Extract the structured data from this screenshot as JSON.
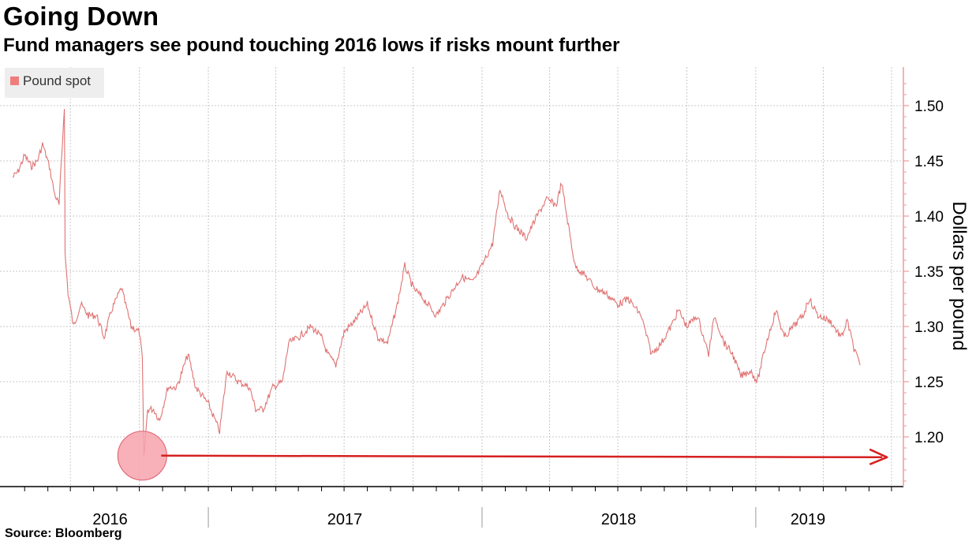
{
  "title": "Going Down",
  "subtitle": "Fund managers see pound touching 2016 lows if risks mount further",
  "source": "Source: Bloomberg",
  "colors": {
    "series": "#e07373",
    "legend_swatch": "#f07d7d",
    "axis": "#f09a9a",
    "arrow": "#d62020",
    "circle_fill": "#f7a3ad",
    "circle_stroke": "#e06b7a",
    "grid": "#c8c8c8"
  },
  "chart_data": {
    "type": "line",
    "title": "Going Down",
    "subtitle": "Fund managers see pound touching 2016 lows if risks mount further",
    "ylabel": "Dollars per pound",
    "ylim": [
      1.155,
      1.535
    ],
    "y_ticks": [
      1.2,
      1.25,
      1.3,
      1.35,
      1.4,
      1.45,
      1.5
    ],
    "y_tick_labels": [
      "1.20",
      "1.25",
      "1.30",
      "1.35",
      "1.40",
      "1.45",
      "1.50"
    ],
    "x_range": [
      "2016-04-15",
      "2019-05-20"
    ],
    "x_year_labels": [
      "2016",
      "2017",
      "2018",
      "2019"
    ],
    "grid": true,
    "legend": "top-left",
    "series": [
      {
        "name": "Pound spot",
        "points": [
          [
            "2016-04-15",
            1.435
          ],
          [
            "2016-04-22",
            1.44
          ],
          [
            "2016-05-01",
            1.455
          ],
          [
            "2016-05-10",
            1.445
          ],
          [
            "2016-05-18",
            1.45
          ],
          [
            "2016-05-25",
            1.465
          ],
          [
            "2016-06-03",
            1.445
          ],
          [
            "2016-06-10",
            1.42
          ],
          [
            "2016-06-16",
            1.41
          ],
          [
            "2016-06-23",
            1.5
          ],
          [
            "2016-06-24",
            1.365
          ],
          [
            "2016-06-28",
            1.33
          ],
          [
            "2016-07-05",
            1.3
          ],
          [
            "2016-07-15",
            1.32
          ],
          [
            "2016-07-25",
            1.31
          ],
          [
            "2016-08-05",
            1.31
          ],
          [
            "2016-08-15",
            1.29
          ],
          [
            "2016-08-25",
            1.315
          ],
          [
            "2016-09-07",
            1.335
          ],
          [
            "2016-09-20",
            1.3
          ],
          [
            "2016-10-01",
            1.295
          ],
          [
            "2016-10-05",
            1.27
          ],
          [
            "2016-10-07",
            1.18
          ],
          [
            "2016-10-12",
            1.225
          ],
          [
            "2016-10-20",
            1.225
          ],
          [
            "2016-10-28",
            1.215
          ],
          [
            "2016-11-08",
            1.245
          ],
          [
            "2016-11-20",
            1.245
          ],
          [
            "2016-12-05",
            1.275
          ],
          [
            "2016-12-15",
            1.245
          ],
          [
            "2017-01-01",
            1.23
          ],
          [
            "2017-01-10",
            1.215
          ],
          [
            "2017-01-16",
            1.205
          ],
          [
            "2017-01-26",
            1.26
          ],
          [
            "2017-02-10",
            1.25
          ],
          [
            "2017-02-25",
            1.245
          ],
          [
            "2017-03-05",
            1.225
          ],
          [
            "2017-03-15",
            1.225
          ],
          [
            "2017-03-28",
            1.245
          ],
          [
            "2017-04-10",
            1.25
          ],
          [
            "2017-04-18",
            1.285
          ],
          [
            "2017-05-01",
            1.29
          ],
          [
            "2017-05-18",
            1.3
          ],
          [
            "2017-06-01",
            1.29
          ],
          [
            "2017-06-09",
            1.275
          ],
          [
            "2017-06-20",
            1.265
          ],
          [
            "2017-07-01",
            1.295
          ],
          [
            "2017-07-15",
            1.305
          ],
          [
            "2017-08-01",
            1.32
          ],
          [
            "2017-08-15",
            1.29
          ],
          [
            "2017-08-28",
            1.285
          ],
          [
            "2017-09-10",
            1.32
          ],
          [
            "2017-09-20",
            1.355
          ],
          [
            "2017-10-01",
            1.335
          ],
          [
            "2017-10-15",
            1.325
          ],
          [
            "2017-11-01",
            1.31
          ],
          [
            "2017-11-20",
            1.33
          ],
          [
            "2017-12-05",
            1.345
          ],
          [
            "2017-12-20",
            1.34
          ],
          [
            "2018-01-01",
            1.355
          ],
          [
            "2018-01-15",
            1.375
          ],
          [
            "2018-01-25",
            1.425
          ],
          [
            "2018-02-05",
            1.4
          ],
          [
            "2018-02-15",
            1.39
          ],
          [
            "2018-03-01",
            1.38
          ],
          [
            "2018-03-15",
            1.4
          ],
          [
            "2018-03-28",
            1.415
          ],
          [
            "2018-04-10",
            1.41
          ],
          [
            "2018-04-17",
            1.43
          ],
          [
            "2018-04-24",
            1.4
          ],
          [
            "2018-05-05",
            1.355
          ],
          [
            "2018-05-20",
            1.345
          ],
          [
            "2018-06-01",
            1.335
          ],
          [
            "2018-06-15",
            1.33
          ],
          [
            "2018-07-01",
            1.32
          ],
          [
            "2018-07-15",
            1.325
          ],
          [
            "2018-08-01",
            1.31
          ],
          [
            "2018-08-15",
            1.275
          ],
          [
            "2018-08-28",
            1.285
          ],
          [
            "2018-09-10",
            1.3
          ],
          [
            "2018-09-20",
            1.315
          ],
          [
            "2018-10-01",
            1.3
          ],
          [
            "2018-10-15",
            1.31
          ],
          [
            "2018-10-30",
            1.275
          ],
          [
            "2018-11-07",
            1.31
          ],
          [
            "2018-11-20",
            1.285
          ],
          [
            "2018-12-01",
            1.275
          ],
          [
            "2018-12-12",
            1.255
          ],
          [
            "2018-12-25",
            1.26
          ],
          [
            "2019-01-03",
            1.25
          ],
          [
            "2019-01-15",
            1.285
          ],
          [
            "2019-01-28",
            1.315
          ],
          [
            "2019-02-08",
            1.29
          ],
          [
            "2019-02-20",
            1.3
          ],
          [
            "2019-03-05",
            1.31
          ],
          [
            "2019-03-13",
            1.325
          ],
          [
            "2019-03-25",
            1.31
          ],
          [
            "2019-04-10",
            1.305
          ],
          [
            "2019-04-25",
            1.29
          ],
          [
            "2019-05-03",
            1.305
          ],
          [
            "2019-05-12",
            1.28
          ],
          [
            "2019-05-20",
            1.265
          ]
        ]
      }
    ],
    "annotation": {
      "type": "arrow",
      "start_date": "2016-10-07",
      "level": 1.183,
      "end_date": "2019-06-25"
    }
  }
}
